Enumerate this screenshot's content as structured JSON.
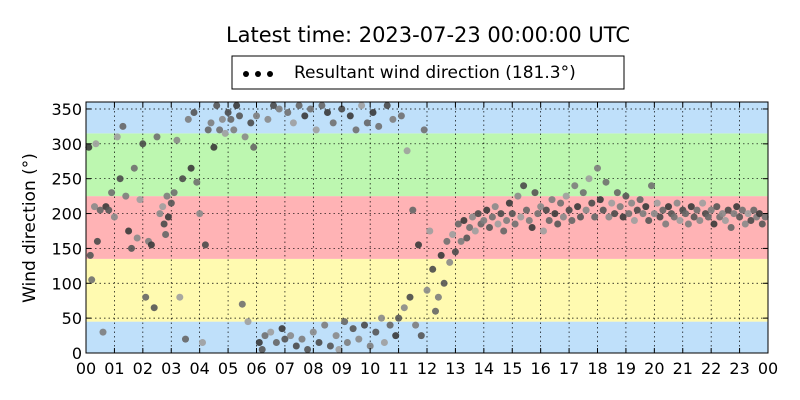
{
  "chart_data": {
    "type": "scatter",
    "title": "Latest time: 2023-07-23 00:00:00 UTC",
    "xlabel": "",
    "ylabel": "Wind direction (°)",
    "xlim": [
      0,
      24
    ],
    "ylim": [
      0,
      360
    ],
    "x_ticks": [
      "00",
      "01",
      "02",
      "03",
      "04",
      "05",
      "06",
      "07",
      "08",
      "09",
      "10",
      "11",
      "12",
      "13",
      "14",
      "15",
      "16",
      "17",
      "18",
      "19",
      "20",
      "21",
      "22",
      "23",
      "00"
    ],
    "y_ticks": [
      0,
      50,
      100,
      150,
      200,
      250,
      300,
      350
    ],
    "grid": true,
    "legend": {
      "position": "top-center",
      "entries": [
        "Resultant wind direction (181.3°)"
      ]
    },
    "background_bands": [
      {
        "from": 0,
        "to": 45,
        "color": "#bfe0fa"
      },
      {
        "from": 45,
        "to": 135,
        "color": "#fffab0"
      },
      {
        "from": 135,
        "to": 225,
        "color": "#ffb3b5"
      },
      {
        "from": 225,
        "to": 315,
        "color": "#bdf7b0"
      },
      {
        "from": 315,
        "to": 360,
        "color": "#bfe0fa"
      }
    ],
    "series": [
      {
        "name": "Resultant wind direction (181.3°)",
        "color": "#555555",
        "points": [
          [
            0.1,
            295
          ],
          [
            0.15,
            140
          ],
          [
            0.2,
            105
          ],
          [
            0.3,
            210
          ],
          [
            0.35,
            300
          ],
          [
            0.4,
            160
          ],
          [
            0.5,
            205
          ],
          [
            0.6,
            30
          ],
          [
            0.7,
            210
          ],
          [
            0.8,
            205
          ],
          [
            0.9,
            230
          ],
          [
            1.0,
            195
          ],
          [
            1.1,
            310
          ],
          [
            1.2,
            250
          ],
          [
            1.3,
            325
          ],
          [
            1.4,
            225
          ],
          [
            1.5,
            175
          ],
          [
            1.6,
            150
          ],
          [
            1.7,
            265
          ],
          [
            1.8,
            165
          ],
          [
            1.9,
            220
          ],
          [
            2.0,
            300
          ],
          [
            2.1,
            80
          ],
          [
            2.2,
            160
          ],
          [
            2.3,
            155
          ],
          [
            2.4,
            65
          ],
          [
            2.5,
            310
          ],
          [
            2.6,
            200
          ],
          [
            2.7,
            210
          ],
          [
            2.75,
            185
          ],
          [
            2.8,
            170
          ],
          [
            2.85,
            225
          ],
          [
            2.9,
            195
          ],
          [
            3.0,
            215
          ],
          [
            3.1,
            230
          ],
          [
            3.2,
            305
          ],
          [
            3.3,
            80
          ],
          [
            3.4,
            250
          ],
          [
            3.5,
            20
          ],
          [
            3.6,
            335
          ],
          [
            3.7,
            265
          ],
          [
            3.8,
            345
          ],
          [
            3.9,
            245
          ],
          [
            4.0,
            200
          ],
          [
            4.1,
            15
          ],
          [
            4.2,
            155
          ],
          [
            4.3,
            320
          ],
          [
            4.4,
            330
          ],
          [
            4.5,
            295
          ],
          [
            4.6,
            355
          ],
          [
            4.7,
            320
          ],
          [
            4.8,
            335
          ],
          [
            4.9,
            315
          ],
          [
            5.0,
            345
          ],
          [
            5.1,
            335
          ],
          [
            5.2,
            320
          ],
          [
            5.3,
            355
          ],
          [
            5.4,
            340
          ],
          [
            5.5,
            70
          ],
          [
            5.6,
            310
          ],
          [
            5.7,
            45
          ],
          [
            5.8,
            330
          ],
          [
            5.9,
            295
          ],
          [
            6.0,
            340
          ],
          [
            6.1,
            15
          ],
          [
            6.2,
            5
          ],
          [
            6.3,
            25
          ],
          [
            6.4,
            335
          ],
          [
            6.5,
            30
          ],
          [
            6.6,
            355
          ],
          [
            6.7,
            15
          ],
          [
            6.8,
            350
          ],
          [
            6.9,
            35
          ],
          [
            7.0,
            20
          ],
          [
            7.1,
            345
          ],
          [
            7.2,
            25
          ],
          [
            7.3,
            330
          ],
          [
            7.4,
            10
          ],
          [
            7.5,
            355
          ],
          [
            7.6,
            20
          ],
          [
            7.7,
            340
          ],
          [
            7.8,
            5
          ],
          [
            7.9,
            350
          ],
          [
            8.0,
            30
          ],
          [
            8.1,
            320
          ],
          [
            8.2,
            15
          ],
          [
            8.3,
            355
          ],
          [
            8.4,
            40
          ],
          [
            8.5,
            345
          ],
          [
            8.6,
            10
          ],
          [
            8.7,
            330
          ],
          [
            8.8,
            25
          ],
          [
            8.9,
            5
          ],
          [
            9.0,
            350
          ],
          [
            9.1,
            45
          ],
          [
            9.2,
            15
          ],
          [
            9.3,
            340
          ],
          [
            9.4,
            35
          ],
          [
            9.5,
            320
          ],
          [
            9.6,
            20
          ],
          [
            9.7,
            355
          ],
          [
            9.8,
            40
          ],
          [
            9.9,
            330
          ],
          [
            10.0,
            10
          ],
          [
            10.1,
            345
          ],
          [
            10.2,
            30
          ],
          [
            10.3,
            325
          ],
          [
            10.4,
            50
          ],
          [
            10.5,
            15
          ],
          [
            10.6,
            355
          ],
          [
            10.7,
            40
          ],
          [
            10.8,
            335
          ],
          [
            10.9,
            25
          ],
          [
            11.0,
            50
          ],
          [
            11.1,
            340
          ],
          [
            11.2,
            65
          ],
          [
            11.3,
            290
          ],
          [
            11.4,
            80
          ],
          [
            11.5,
            205
          ],
          [
            11.6,
            40
          ],
          [
            11.7,
            155
          ],
          [
            11.8,
            25
          ],
          [
            11.9,
            320
          ],
          [
            12.0,
            90
          ],
          [
            12.1,
            175
          ],
          [
            12.2,
            120
          ],
          [
            12.3,
            60
          ],
          [
            12.4,
            80
          ],
          [
            12.5,
            140
          ],
          [
            12.6,
            100
          ],
          [
            12.7,
            160
          ],
          [
            12.8,
            130
          ],
          [
            12.9,
            170
          ],
          [
            13.0,
            145
          ],
          [
            13.1,
            185
          ],
          [
            13.2,
            160
          ],
          [
            13.3,
            190
          ],
          [
            13.4,
            165
          ],
          [
            13.5,
            180
          ],
          [
            13.6,
            195
          ],
          [
            13.7,
            175
          ],
          [
            13.8,
            200
          ],
          [
            13.9,
            185
          ],
          [
            14.0,
            190
          ],
          [
            14.1,
            205
          ],
          [
            14.2,
            180
          ],
          [
            14.3,
            195
          ],
          [
            14.4,
            210
          ],
          [
            14.5,
            185
          ],
          [
            14.6,
            200
          ],
          [
            14.7,
            175
          ],
          [
            14.8,
            190
          ],
          [
            14.9,
            215
          ],
          [
            15.0,
            200
          ],
          [
            15.1,
            185
          ],
          [
            15.2,
            225
          ],
          [
            15.3,
            195
          ],
          [
            15.4,
            240
          ],
          [
            15.5,
            205
          ],
          [
            15.6,
            190
          ],
          [
            15.7,
            180
          ],
          [
            15.8,
            230
          ],
          [
            15.9,
            200
          ],
          [
            16.0,
            210
          ],
          [
            16.1,
            175
          ],
          [
            16.2,
            205
          ],
          [
            16.3,
            190
          ],
          [
            16.4,
            220
          ],
          [
            16.5,
            200
          ],
          [
            16.6,
            185
          ],
          [
            16.7,
            215
          ],
          [
            16.8,
            195
          ],
          [
            16.9,
            225
          ],
          [
            17.0,
            205
          ],
          [
            17.1,
            190
          ],
          [
            17.2,
            240
          ],
          [
            17.3,
            210
          ],
          [
            17.4,
            195
          ],
          [
            17.5,
            230
          ],
          [
            17.6,
            205
          ],
          [
            17.7,
            250
          ],
          [
            17.8,
            215
          ],
          [
            17.9,
            195
          ],
          [
            18.0,
            265
          ],
          [
            18.1,
            220
          ],
          [
            18.2,
            205
          ],
          [
            18.3,
            245
          ],
          [
            18.4,
            195
          ],
          [
            18.5,
            215
          ],
          [
            18.6,
            200
          ],
          [
            18.7,
            230
          ],
          [
            18.8,
            210
          ],
          [
            18.9,
            195
          ],
          [
            19.0,
            225
          ],
          [
            19.1,
            200
          ],
          [
            19.2,
            215
          ],
          [
            19.3,
            190
          ],
          [
            19.4,
            205
          ],
          [
            19.5,
            220
          ],
          [
            19.6,
            200
          ],
          [
            19.7,
            210
          ],
          [
            19.8,
            190
          ],
          [
            19.9,
            240
          ],
          [
            20.0,
            200
          ],
          [
            20.1,
            215
          ],
          [
            20.2,
            195
          ],
          [
            20.3,
            205
          ],
          [
            20.4,
            185
          ],
          [
            20.5,
            210
          ],
          [
            20.6,
            200
          ],
          [
            20.7,
            195
          ],
          [
            20.8,
            215
          ],
          [
            20.9,
            190
          ],
          [
            21.0,
            205
          ],
          [
            21.1,
            200
          ],
          [
            21.2,
            185
          ],
          [
            21.3,
            210
          ],
          [
            21.4,
            195
          ],
          [
            21.5,
            205
          ],
          [
            21.6,
            190
          ],
          [
            21.7,
            215
          ],
          [
            21.8,
            200
          ],
          [
            21.9,
            195
          ],
          [
            22.0,
            205
          ],
          [
            22.1,
            185
          ],
          [
            22.2,
            210
          ],
          [
            22.3,
            195
          ],
          [
            22.4,
            200
          ],
          [
            22.5,
            190
          ],
          [
            22.6,
            205
          ],
          [
            22.7,
            180
          ],
          [
            22.8,
            200
          ],
          [
            22.9,
            210
          ],
          [
            23.0,
            195
          ],
          [
            23.1,
            205
          ],
          [
            23.2,
            185
          ],
          [
            23.3,
            200
          ],
          [
            23.4,
            190
          ],
          [
            23.5,
            205
          ],
          [
            23.6,
            195
          ],
          [
            23.7,
            200
          ],
          [
            23.8,
            185
          ],
          [
            23.9,
            195
          ]
        ]
      }
    ]
  }
}
